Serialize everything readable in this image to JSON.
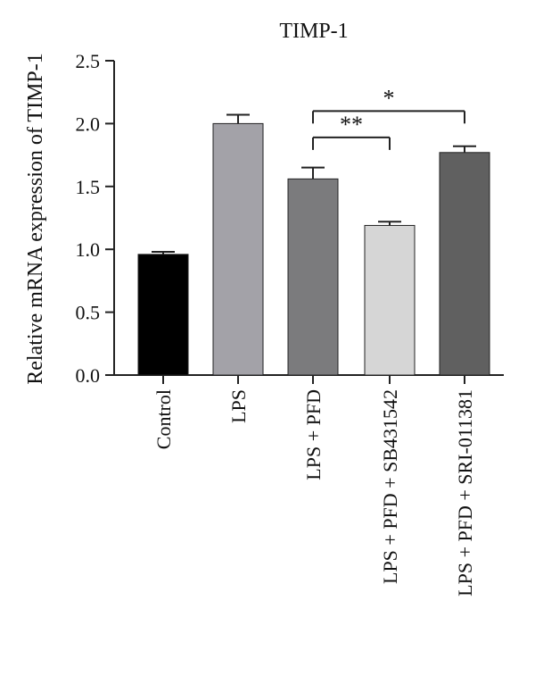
{
  "chart_data": {
    "type": "bar",
    "title": "TIMP-1",
    "xlabel": "",
    "ylabel": "Relative mRNA expression of TIMP-1",
    "ylim": [
      0,
      2.5
    ],
    "yticks": [
      "0.0",
      "0.5",
      "1.0",
      "1.5",
      "2.0",
      "2.5"
    ],
    "ytick_values": [
      0,
      0.5,
      1.0,
      1.5,
      2.0,
      2.5
    ],
    "categories": [
      "Control",
      "LPS",
      "LPS + PFD",
      "LPS + PFD + SB431542",
      "LPS + PFD + SRI-011381"
    ],
    "values": [
      0.96,
      2.0,
      1.56,
      1.19,
      1.77
    ],
    "errors": [
      0.02,
      0.07,
      0.09,
      0.03,
      0.05
    ],
    "colors": [
      "#000000",
      "#a3a2a8",
      "#7b7b7d",
      "#d6d6d6",
      "#606060"
    ],
    "grid": false,
    "significance": [
      {
        "from": 2,
        "to": 3,
        "label": "**",
        "y": 1.89
      },
      {
        "from": 2,
        "to": 4,
        "label": "*",
        "y": 2.1
      }
    ]
  }
}
